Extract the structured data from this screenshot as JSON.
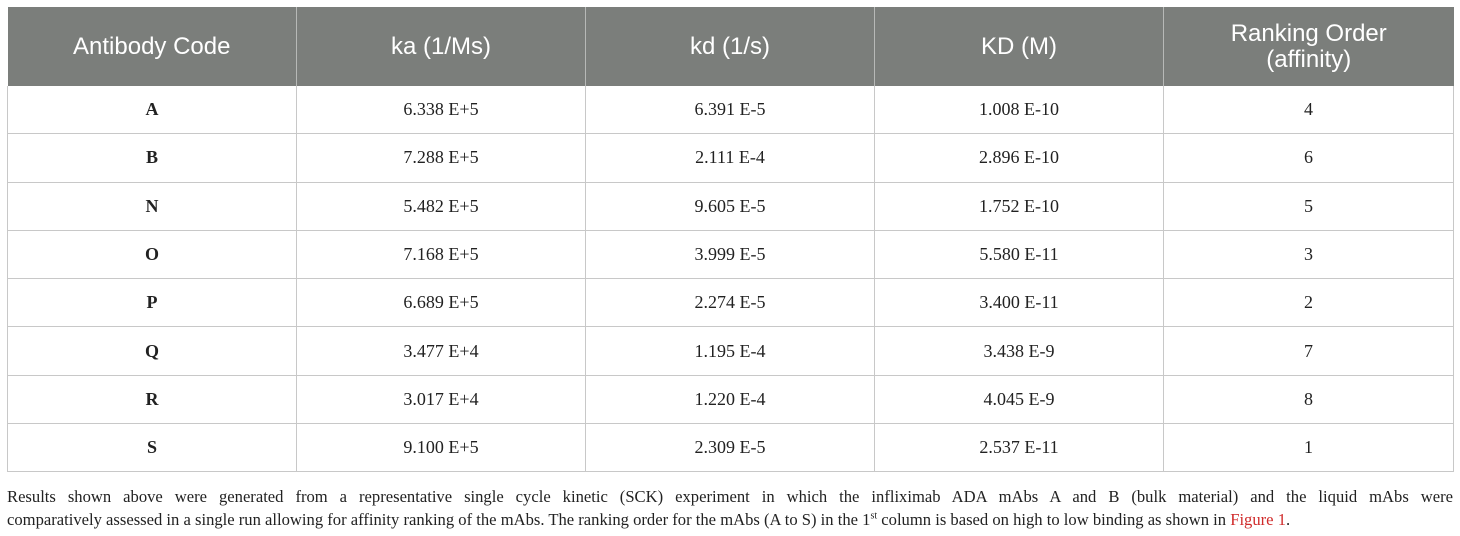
{
  "table": {
    "headers": [
      "Antibody Code",
      "ka (1/Ms)",
      "kd (1/s)",
      "KD (M)",
      "Ranking Order",
      "(affinity)"
    ],
    "rows": [
      [
        "A",
        "6.338 E+5",
        "6.391 E-5",
        "1.008 E-10",
        "4"
      ],
      [
        "B",
        "7.288 E+5",
        "2.111 E-4",
        "2.896 E-10",
        "6"
      ],
      [
        "N",
        "5.482 E+5",
        "9.605 E-5",
        "1.752 E-10",
        "5"
      ],
      [
        "O",
        "7.168 E+5",
        "3.999 E-5",
        "5.580 E-11",
        "3"
      ],
      [
        "P",
        "6.689 E+5",
        "2.274 E-5",
        "3.400 E-11",
        "2"
      ],
      [
        "Q",
        "3.477 E+4",
        "1.195 E-4",
        "3.438 E-9",
        "7"
      ],
      [
        "R",
        "3.017 E+4",
        "1.220 E-4",
        "4.045 E-9",
        "8"
      ],
      [
        "S",
        "9.100 E+5",
        "2.309 E-5",
        "2.537 E-11",
        "1"
      ]
    ]
  },
  "caption": {
    "line1": "Results shown above were generated from a representative single cycle kinetic (SCK) experiment in which the infliximab ADA mAbs A and B (bulk material) and the liquid mAbs were",
    "line2_pre": "comparatively assessed in a single run allowing for affinity ranking of the mAbs. The ranking order for the mAbs (A to S) in the 1",
    "line2_sup": "st",
    "line2_post": " column is based on high to low binding as shown in ",
    "figure_link": "Figure 1",
    "end": "."
  },
  "colors": {
    "header_bg": "#7b7e7b",
    "link": "#d02a2a"
  }
}
